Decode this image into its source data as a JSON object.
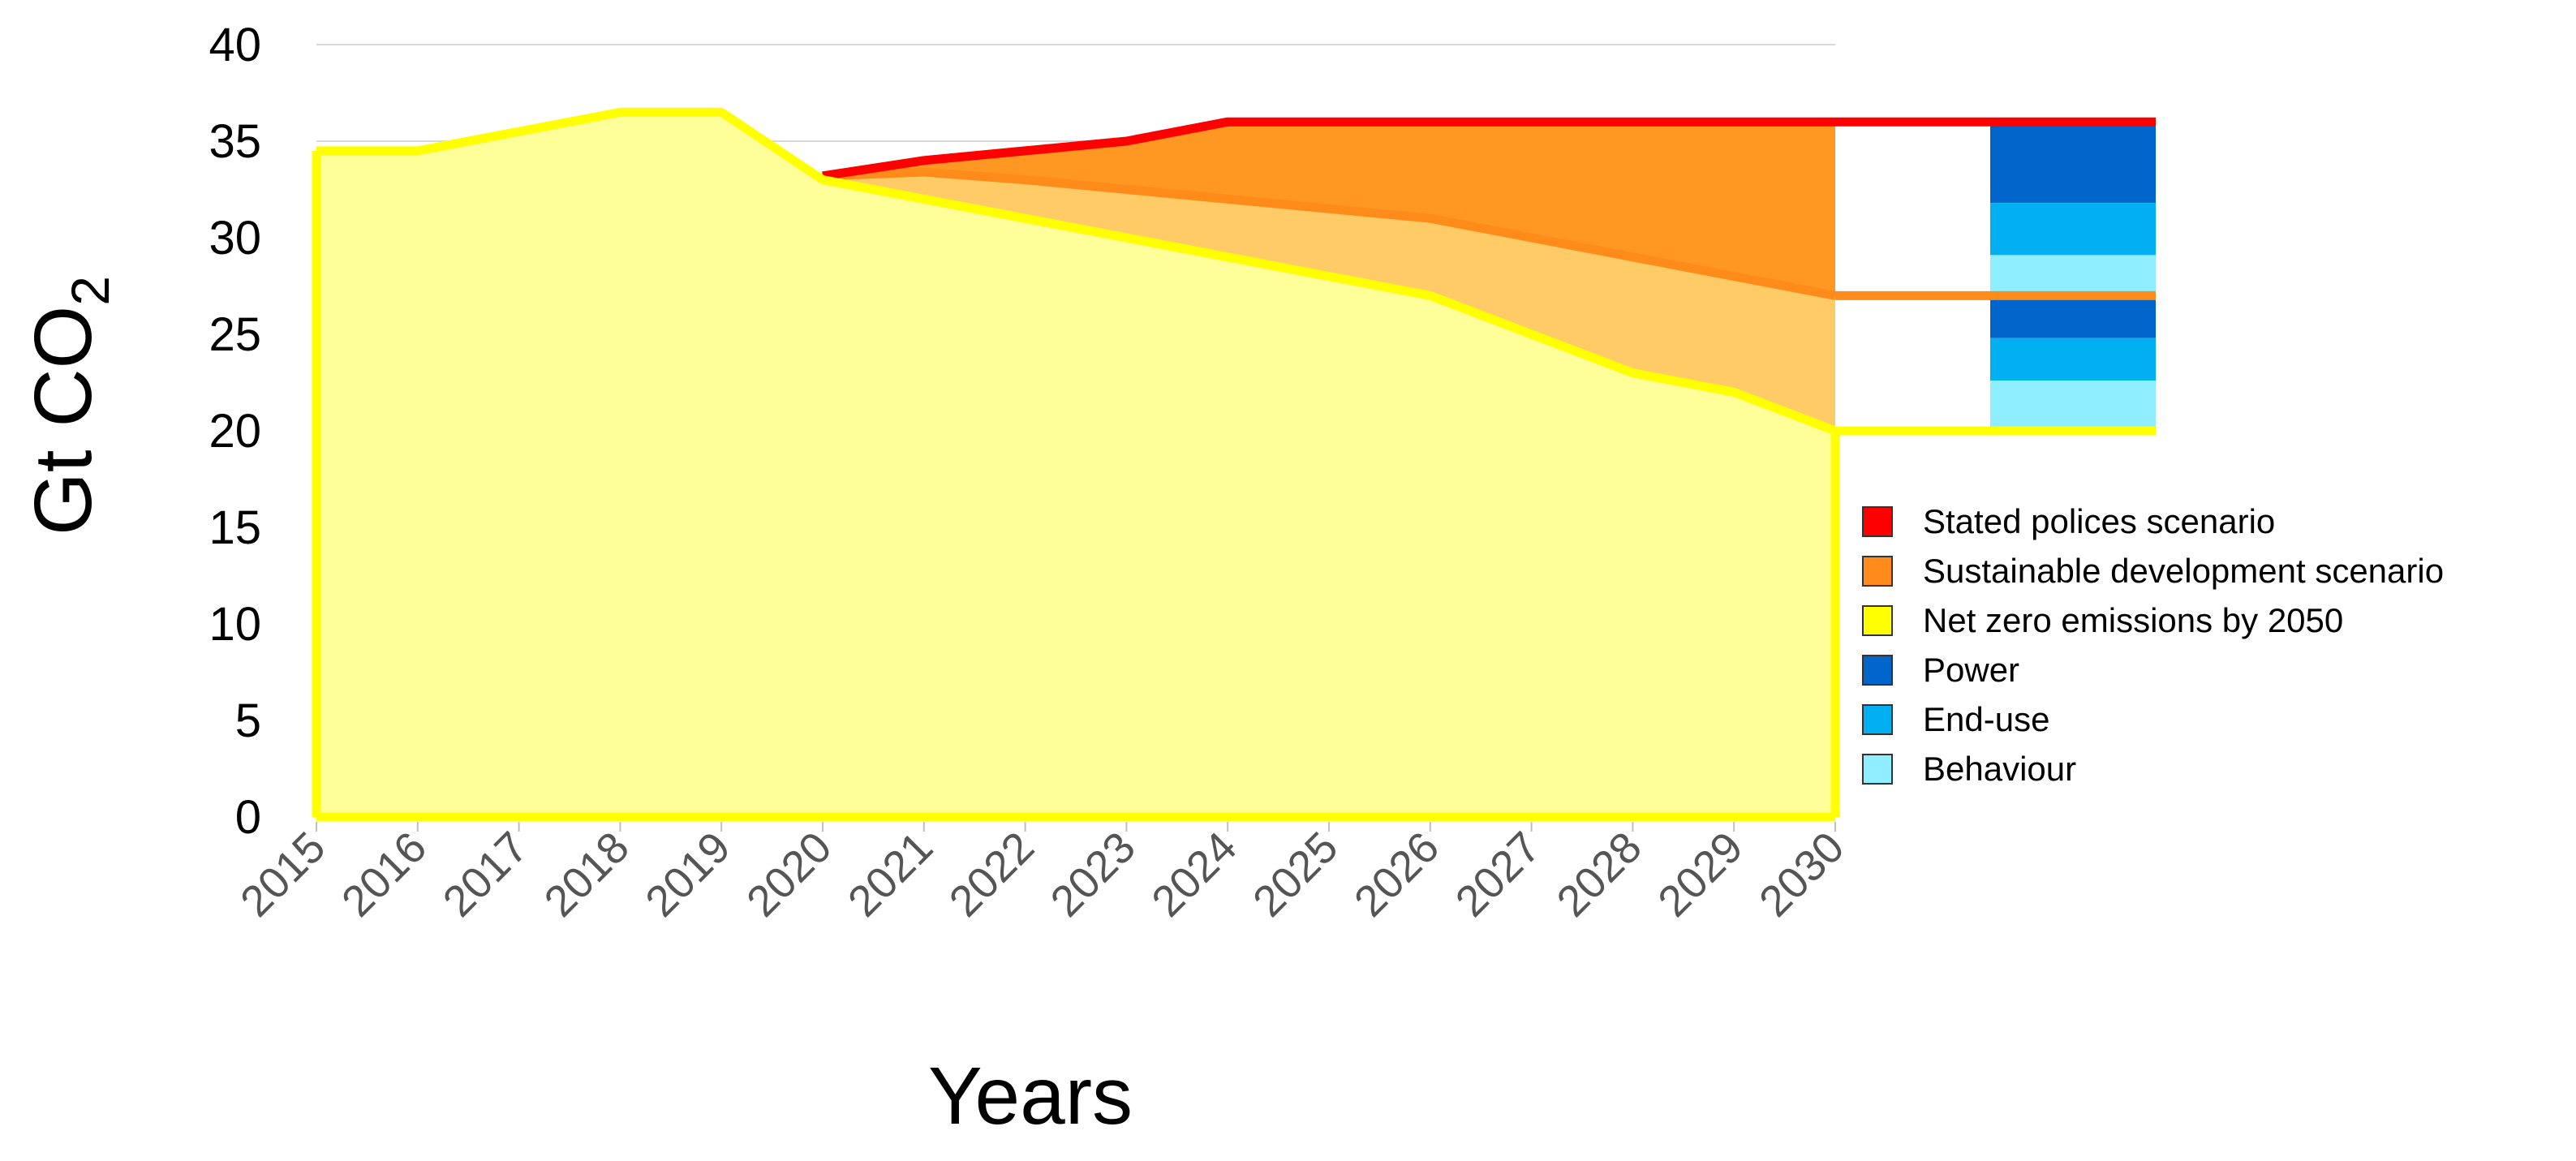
{
  "chart_data": {
    "type": "area",
    "xlabel": "Years",
    "ylabel": "Gt CO",
    "ylabel_subscript": "2",
    "x": [
      2015,
      2016,
      2017,
      2018,
      2019,
      2020,
      2021,
      2022,
      2023,
      2024,
      2025,
      2026,
      2027,
      2028,
      2029,
      2030
    ],
    "x_tick_labels": [
      "2015",
      "2016",
      "2017",
      "2018",
      "2019",
      "2020",
      "2021",
      "2022",
      "2023",
      "2024",
      "2025",
      "2026",
      "2027",
      "2028",
      "2029",
      "2030"
    ],
    "ylim": [
      0,
      40
    ],
    "y_ticks": [
      0,
      5,
      10,
      15,
      20,
      25,
      30,
      35,
      40
    ],
    "y_tick_labels": [
      "0",
      "5",
      "10",
      "15",
      "20",
      "25",
      "30",
      "35",
      "40"
    ],
    "grid": "horizontal",
    "series": [
      {
        "name": "Stated polices scenario",
        "color": "#ff0000",
        "fill": "#ff9822",
        "values": [
          null,
          null,
          null,
          null,
          null,
          33.2,
          34.0,
          34.5,
          35.0,
          36.0,
          36.0,
          36.0,
          36.0,
          36.0,
          36.0,
          36.0
        ]
      },
      {
        "name": "Sustainable development scenario",
        "color": "#ff8c1a",
        "fill": "#ffcb66",
        "values": [
          null,
          null,
          null,
          null,
          null,
          33.2,
          33.4,
          33.0,
          32.5,
          32.0,
          31.5,
          31.0,
          30.0,
          29.0,
          28.0,
          27.0
        ]
      },
      {
        "name": "Net zero emissions by 2050",
        "color": "#ffff00",
        "fill": "#ffff99",
        "values": [
          34.5,
          34.5,
          35.5,
          36.5,
          36.5,
          33.0,
          32.0,
          31.0,
          30.0,
          29.0,
          28.0,
          27.0,
          25.0,
          23.0,
          22.0,
          20.0
        ]
      }
    ],
    "breakdown": {
      "upper_gap": [
        {
          "name": "Power",
          "color": "#0066cc",
          "from": 31.8,
          "to": 36.0
        },
        {
          "name": "End-use",
          "color": "#00b0f0",
          "from": 29.1,
          "to": 31.8
        },
        {
          "name": "Behaviour",
          "color": "#8feeff",
          "from": 27.0,
          "to": 29.1
        }
      ],
      "lower_gap": [
        {
          "name": "Power",
          "color": "#0066cc",
          "from": 24.8,
          "to": 27.0
        },
        {
          "name": "End-use",
          "color": "#00b0f0",
          "from": 22.6,
          "to": 24.8
        },
        {
          "name": "Behaviour",
          "color": "#8feeff",
          "from": 20.0,
          "to": 22.6
        }
      ]
    },
    "legend": {
      "position": "right",
      "entries": [
        {
          "label": "Stated polices scenario",
          "color": "#ff0000"
        },
        {
          "label": "Sustainable development scenario",
          "color": "#ff8c1a"
        },
        {
          "label": "Net zero emissions by 2050",
          "color": "#ffff00"
        },
        {
          "label": "Power",
          "color": "#0066cc"
        },
        {
          "label": "End-use",
          "color": "#00b0f0"
        },
        {
          "label": "Behaviour",
          "color": "#8feeff"
        }
      ]
    }
  }
}
